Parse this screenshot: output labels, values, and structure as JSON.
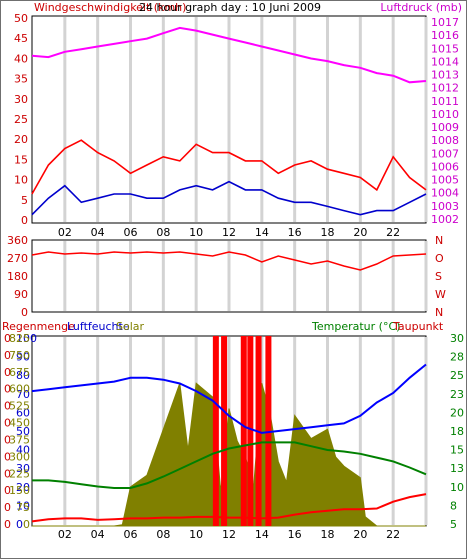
{
  "chart_data": [
    {
      "type": "line",
      "title": "24 hour graph day : 10 Juni 2009",
      "left_label": "Windgeschwindigkeit (kmh)",
      "right_label": "Luftdruck (mb)",
      "x_ticks": [
        "02",
        "04",
        "06",
        "08",
        "10",
        "12",
        "14",
        "16",
        "18",
        "20",
        "22",
        ""
      ],
      "y_left_ticks": [
        "0",
        "5",
        "10",
        "15",
        "20",
        "25",
        "30",
        "35",
        "40",
        "45",
        "50"
      ],
      "y_left_range": [
        0,
        50
      ],
      "y_right_ticks": [
        "1002",
        "1003",
        "1004",
        "1005",
        "1006",
        "1007",
        "1008",
        "1009",
        "1010",
        "1011",
        "1012",
        "1013",
        "1014",
        "1015",
        "1016",
        "1017"
      ],
      "y_right_range": [
        1001.7,
        1017.3
      ],
      "grid": true,
      "series": [
        {
          "name": "Windgeschwindigkeit",
          "axis": "left",
          "color": "#ff0000",
          "hours": [
            0,
            1,
            2,
            3,
            4,
            5,
            6,
            7,
            8,
            9,
            10,
            11,
            12,
            13,
            14,
            15,
            16,
            17,
            18,
            19,
            20,
            21,
            22,
            23,
            24
          ],
          "values": [
            7,
            14,
            18,
            20,
            17,
            15,
            12,
            14,
            16,
            15,
            19,
            17,
            17,
            15,
            15,
            12,
            14,
            15,
            13,
            12,
            11,
            8,
            16,
            11,
            8
          ]
        },
        {
          "name": "Wind",
          "axis": "left",
          "color": "#0000cc",
          "hours": [
            0,
            1,
            2,
            3,
            4,
            5,
            6,
            7,
            8,
            9,
            10,
            11,
            12,
            13,
            14,
            15,
            16,
            17,
            18,
            19,
            20,
            21,
            22,
            23,
            24
          ],
          "values": [
            2,
            6,
            9,
            5,
            6,
            7,
            7,
            6,
            6,
            8,
            9,
            8,
            10,
            8,
            8,
            6,
            5,
            5,
            4,
            3,
            2,
            3,
            3,
            5,
            7
          ]
        },
        {
          "name": "Luftdruck",
          "axis": "right",
          "color": "#ff00ff",
          "hours": [
            0,
            1,
            2,
            3,
            4,
            5,
            6,
            7,
            8,
            9,
            10,
            11,
            12,
            13,
            14,
            15,
            16,
            17,
            18,
            19,
            20,
            21,
            22,
            23,
            24
          ],
          "values": [
            1014.3,
            1014.2,
            1014.6,
            1014.8,
            1015.0,
            1015.2,
            1015.4,
            1015.6,
            1016.0,
            1016.4,
            1016.2,
            1015.9,
            1015.6,
            1015.3,
            1015.0,
            1014.7,
            1014.4,
            1014.1,
            1013.9,
            1013.6,
            1013.4,
            1013.0,
            1012.8,
            1012.3,
            1012.4
          ]
        }
      ]
    },
    {
      "type": "line",
      "title": "",
      "x_ticks": [
        "02",
        "04",
        "06",
        "08",
        "10",
        "12",
        "14",
        "16",
        "18",
        "20",
        "22",
        ""
      ],
      "y_left_ticks": [
        "0",
        "90",
        "180",
        "270",
        "360"
      ],
      "y_left_range": [
        0,
        360
      ],
      "y_right_ticks": [
        "N",
        "W",
        "S",
        "O",
        "N"
      ],
      "grid": true,
      "series": [
        {
          "name": "Windrichtung",
          "color": "#ff0000",
          "hours": [
            0,
            1,
            2,
            3,
            4,
            5,
            6,
            7,
            8,
            9,
            10,
            11,
            12,
            13,
            14,
            15,
            16,
            17,
            18,
            19,
            20,
            21,
            22,
            23,
            24
          ],
          "values": [
            285,
            300,
            290,
            295,
            290,
            300,
            295,
            300,
            295,
            300,
            290,
            280,
            300,
            285,
            250,
            280,
            260,
            240,
            255,
            230,
            210,
            240,
            280,
            285,
            290
          ]
        }
      ]
    },
    {
      "type": "line",
      "title": "",
      "left_label": "Regenmenge",
      "left_label_2": "Luftfeuchte",
      "left_label_3": "Solar",
      "right_label": "Temperatur (°C)",
      "right_label_2": "Taupunkt",
      "x_ticks": [
        "02",
        "04",
        "06",
        "08",
        "10",
        "12",
        "14",
        "16",
        "18",
        "20",
        "22",
        ""
      ],
      "y_left_ticks": [
        "0",
        "0",
        "0",
        "0",
        "0",
        "0",
        "0",
        "0",
        "0",
        "0",
        "0",
        "0"
      ],
      "y_left_ticks_2": [
        "0",
        "10",
        "20",
        "30",
        "40",
        "50",
        "60",
        "70",
        "80",
        "90",
        "100"
      ],
      "y_left_ticks_3": [
        "0",
        "75",
        "150",
        "225",
        "300",
        "375",
        "450",
        "525",
        "600",
        "675",
        "750",
        "825"
      ],
      "y_left_range": [
        0,
        100
      ],
      "y_right_ticks": [
        "5",
        "8",
        "10",
        "13",
        "15",
        "18",
        "20",
        "23",
        "25",
        "28",
        "30"
      ],
      "y_right_range": [
        5,
        30
      ],
      "grid": true,
      "series": [
        {
          "name": "Luftfeuchte",
          "axis": "humidity",
          "color": "#0000ff",
          "hours": [
            0,
            1,
            2,
            3,
            4,
            5,
            6,
            7,
            8,
            9,
            10,
            11,
            12,
            13,
            14,
            15,
            16,
            17,
            18,
            19,
            20,
            21,
            22,
            23,
            24
          ],
          "values": [
            71,
            72,
            73,
            74,
            75,
            76,
            78,
            78,
            77,
            75,
            71,
            66,
            58,
            52,
            49,
            50,
            51,
            52,
            53,
            54,
            58,
            65,
            70,
            78,
            85
          ]
        },
        {
          "name": "Temperatur",
          "axis": "temp",
          "color": "#008000",
          "hours": [
            0,
            1,
            2,
            3,
            4,
            5,
            6,
            7,
            8,
            9,
            10,
            11,
            12,
            13,
            14,
            15,
            16,
            17,
            18,
            19,
            20,
            21,
            22,
            23,
            24
          ],
          "values": [
            11.0,
            11.0,
            10.8,
            10.5,
            10.2,
            10.0,
            10.0,
            10.6,
            11.5,
            12.5,
            13.5,
            14.5,
            15.2,
            15.6,
            16.0,
            16.0,
            16.0,
            15.5,
            15.0,
            14.8,
            14.5,
            14.0,
            13.5,
            12.7,
            11.8
          ]
        },
        {
          "name": "Taupunkt",
          "axis": "temp",
          "color": "#ff0000",
          "hours": [
            0,
            1,
            2,
            3,
            4,
            5,
            6,
            7,
            8,
            9,
            10,
            11,
            12,
            13,
            14,
            15,
            16,
            17,
            18,
            19,
            20,
            21,
            22,
            23,
            24
          ],
          "values": [
            5.6,
            5.9,
            6.0,
            6.0,
            5.8,
            5.9,
            6.0,
            6.0,
            6.1,
            6.1,
            6.2,
            6.2,
            6.1,
            6.1,
            6.0,
            6.1,
            6.5,
            6.8,
            7.0,
            7.2,
            7.2,
            7.3,
            8.2,
            8.8,
            9.2
          ]
        },
        {
          "name": "Solar",
          "axis": "solar",
          "color": "#808000",
          "hours": [
            0,
            1,
            2,
            3,
            4,
            5,
            5.5,
            6,
            7,
            8,
            9,
            9.5,
            10,
            11,
            11.5,
            12,
            12.5,
            13,
            13.5,
            14,
            14.5,
            15,
            15.5,
            16,
            17,
            18,
            18.5,
            19,
            20,
            20.3,
            21,
            22,
            23,
            24
          ],
          "values": [
            0,
            0,
            0,
            0,
            0,
            0,
            5,
            170,
            220,
            420,
            620,
            330,
            620,
            560,
            150,
            510,
            370,
            300,
            170,
            620,
            490,
            280,
            190,
            480,
            380,
            420,
            300,
            260,
            210,
            40,
            0,
            0,
            0,
            0
          ]
        },
        {
          "name": "Regen",
          "axis": "rain",
          "color": "#ff0000",
          "hours": [
            11.2,
            11.7,
            12.9,
            13.3,
            13.8,
            14.4
          ],
          "values": [
            100,
            100,
            100,
            100,
            100,
            100
          ]
        }
      ]
    }
  ]
}
